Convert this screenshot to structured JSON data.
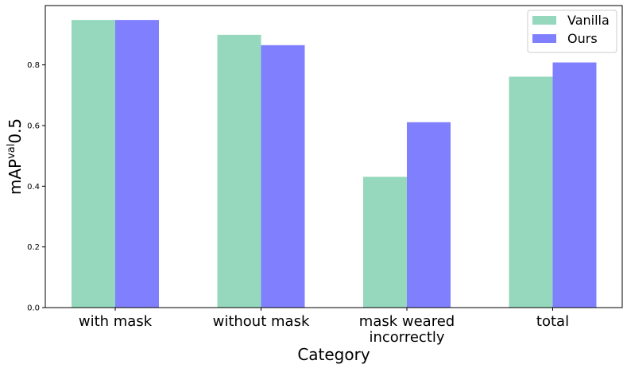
{
  "chart_data": {
    "type": "bar",
    "categories": [
      [
        "with mask"
      ],
      [
        "without mask"
      ],
      [
        "mask weared",
        "incorrectly"
      ],
      [
        "total"
      ]
    ],
    "series": [
      {
        "name": "Vanilla",
        "color": "#95d8bd",
        "values": [
          0.948,
          0.899,
          0.431,
          0.761
        ]
      },
      {
        "name": "Ours",
        "color": "#8080ff",
        "values": [
          0.948,
          0.865,
          0.611,
          0.808
        ]
      }
    ],
    "xlabel": "Category",
    "ylabel_main": "mAP",
    "ylabel_sup": "val",
    "ylabel_tail": "0.5",
    "ylim": [
      0,
      0.9955
    ],
    "yticks": [
      0.0,
      0.2,
      0.4,
      0.6,
      0.8
    ],
    "ytick_labels": [
      "0.0",
      "0.2",
      "0.4",
      "0.6",
      "0.8"
    ],
    "grid": false,
    "legend_position": "top-right"
  }
}
